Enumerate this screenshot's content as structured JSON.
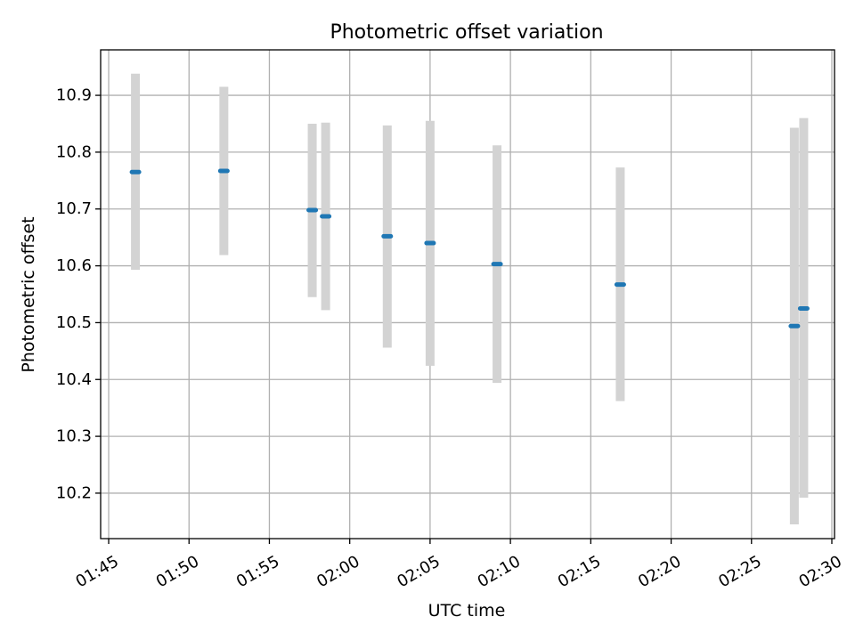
{
  "chart_data": {
    "type": "scatter",
    "title": "Photometric offset variation",
    "xlabel": "UTC time",
    "ylabel": "Photometric offset",
    "x_ticks": [
      "01:45",
      "01:50",
      "01:55",
      "02:00",
      "02:05",
      "02:10",
      "02:15",
      "02:20",
      "02:25",
      "02:30"
    ],
    "y_ticks": [
      "10.2",
      "10.3",
      "10.4",
      "10.5",
      "10.6",
      "10.7",
      "10.8",
      "10.9"
    ],
    "xlim": [
      "01:44:30",
      "02:30:10"
    ],
    "ylim": [
      10.12,
      10.98
    ],
    "grid": true,
    "points": [
      {
        "x": "01:46:40",
        "y": 10.765,
        "err_low": 10.593,
        "err_high": 10.938
      },
      {
        "x": "01:52:10",
        "y": 10.767,
        "err_low": 10.619,
        "err_high": 10.915
      },
      {
        "x": "01:57:40",
        "y": 10.698,
        "err_low": 10.545,
        "err_high": 10.85
      },
      {
        "x": "01:58:30",
        "y": 10.687,
        "err_low": 10.522,
        "err_high": 10.852
      },
      {
        "x": "02:02:20",
        "y": 10.652,
        "err_low": 10.456,
        "err_high": 10.847
      },
      {
        "x": "02:05:00",
        "y": 10.64,
        "err_low": 10.424,
        "err_high": 10.855
      },
      {
        "x": "02:09:10",
        "y": 10.603,
        "err_low": 10.394,
        "err_high": 10.812
      },
      {
        "x": "02:16:50",
        "y": 10.567,
        "err_low": 10.362,
        "err_high": 10.773
      },
      {
        "x": "02:27:40",
        "y": 10.494,
        "err_low": 10.145,
        "err_high": 10.843
      },
      {
        "x": "02:28:15",
        "y": 10.525,
        "err_low": 10.192,
        "err_high": 10.86
      }
    ],
    "colors": {
      "marker": "#1f77b4",
      "errorbar": "#d3d3d3",
      "grid": "#b0b0b0",
      "axes": "#000000"
    }
  }
}
